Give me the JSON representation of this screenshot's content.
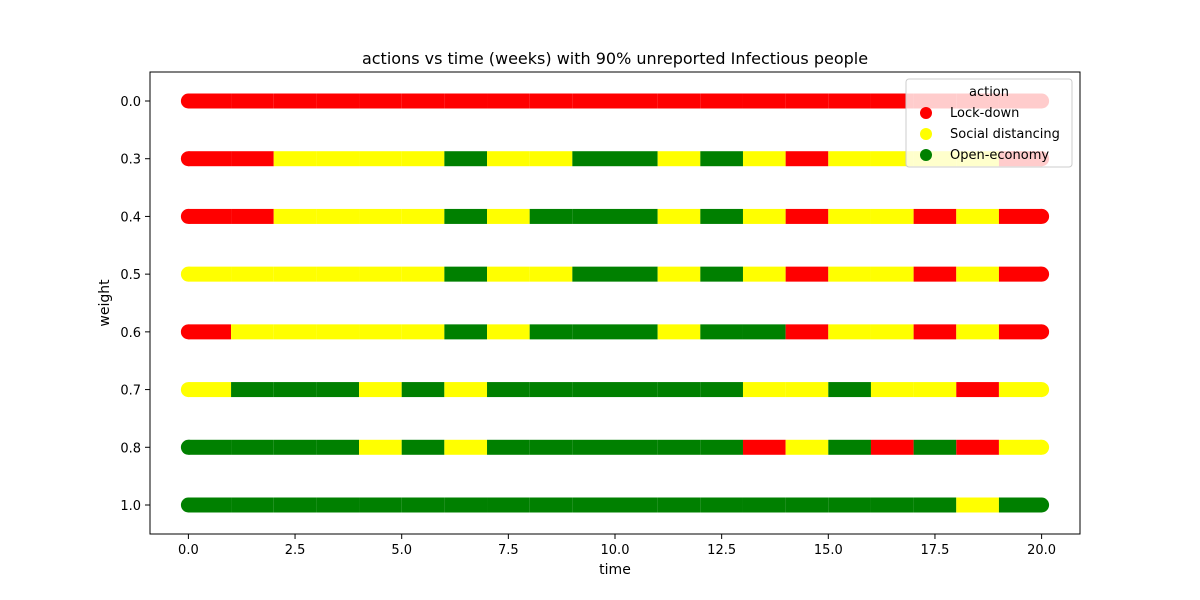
{
  "chart_data": {
    "type": "scatter",
    "title": "actions vs time (weeks) with 90% unreported Infectious people",
    "xlabel": "time",
    "ylabel": "weight",
    "xlim": [
      -0.9,
      20.9
    ],
    "xticks": [
      0.0,
      2.5,
      5.0,
      7.5,
      10.0,
      12.5,
      15.0,
      17.5,
      20.0
    ],
    "xtick_labels": [
      "0.0",
      "2.5",
      "5.0",
      "7.5",
      "10.0",
      "12.5",
      "15.0",
      "17.5",
      "20.0"
    ],
    "categories": [
      "0.0",
      "0.3",
      "0.4",
      "0.5",
      "0.6",
      "0.7",
      "0.8",
      "1.0"
    ],
    "legend": {
      "title": "action",
      "placement": "top-right",
      "entries": [
        {
          "key": "L",
          "label": "Lock-down",
          "color": "#ff0000"
        },
        {
          "key": "S",
          "label": "Social distancing",
          "color": "#ffff00"
        },
        {
          "key": "O",
          "label": "Open-economy",
          "color": "#008000"
        }
      ]
    },
    "rows": [
      {
        "weight": "0.0",
        "weeks": [
          "L",
          "L",
          "L",
          "L",
          "L",
          "L",
          "L",
          "L",
          "L",
          "L",
          "L",
          "L",
          "L",
          "L",
          "L",
          "L",
          "L",
          "L",
          "L",
          "L"
        ]
      },
      {
        "weight": "0.3",
        "weeks": [
          "L",
          "L",
          "S",
          "S",
          "S",
          "S",
          "O",
          "S",
          "S",
          "O",
          "O",
          "S",
          "O",
          "S",
          "L",
          "S",
          "S",
          "S",
          "S",
          "L"
        ]
      },
      {
        "weight": "0.4",
        "weeks": [
          "L",
          "L",
          "S",
          "S",
          "S",
          "S",
          "O",
          "S",
          "O",
          "O",
          "O",
          "S",
          "O",
          "S",
          "L",
          "S",
          "S",
          "L",
          "S",
          "L"
        ]
      },
      {
        "weight": "0.5",
        "weeks": [
          "S",
          "S",
          "S",
          "S",
          "S",
          "S",
          "O",
          "S",
          "S",
          "O",
          "O",
          "S",
          "O",
          "S",
          "L",
          "S",
          "S",
          "L",
          "S",
          "L"
        ]
      },
      {
        "weight": "0.6",
        "weeks": [
          "L",
          "S",
          "S",
          "S",
          "S",
          "S",
          "O",
          "S",
          "O",
          "O",
          "O",
          "S",
          "O",
          "O",
          "L",
          "S",
          "S",
          "L",
          "S",
          "L"
        ]
      },
      {
        "weight": "0.7",
        "weeks": [
          "S",
          "O",
          "O",
          "O",
          "S",
          "O",
          "S",
          "O",
          "O",
          "O",
          "O",
          "O",
          "O",
          "S",
          "S",
          "O",
          "S",
          "S",
          "L",
          "S"
        ]
      },
      {
        "weight": "0.8",
        "weeks": [
          "O",
          "O",
          "O",
          "O",
          "S",
          "O",
          "S",
          "O",
          "O",
          "O",
          "O",
          "O",
          "O",
          "L",
          "S",
          "O",
          "L",
          "O",
          "L",
          "S"
        ]
      },
      {
        "weight": "1.0",
        "weeks": [
          "O",
          "O",
          "O",
          "O",
          "O",
          "O",
          "O",
          "O",
          "O",
          "O",
          "O",
          "O",
          "O",
          "O",
          "O",
          "O",
          "O",
          "O",
          "S",
          "O"
        ]
      }
    ]
  }
}
